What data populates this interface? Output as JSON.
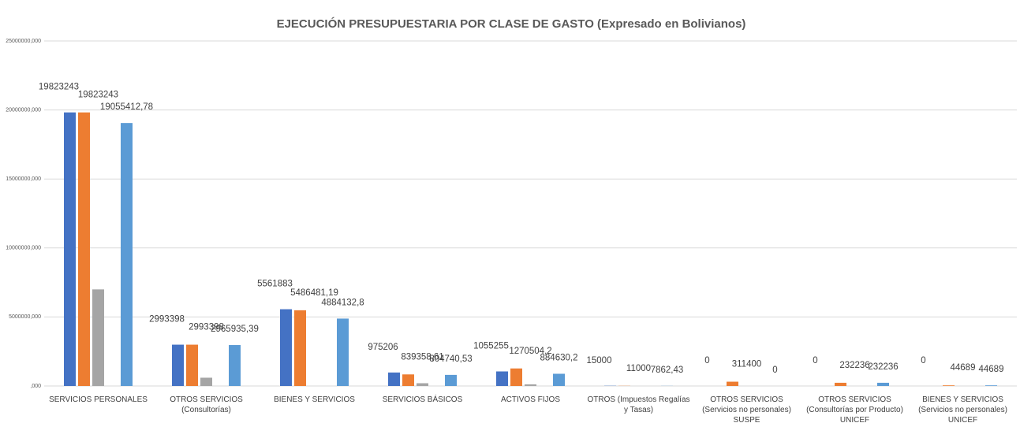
{
  "chart_data": {
    "type": "bar",
    "title": "EJECUCIÓN PRESUPUESTARIA POR CLASE DE GASTO (Expresado en Bolivianos)",
    "categories": [
      "SERVICIOS PERSONALES",
      "OTROS SERVICIOS (Consultorías)",
      "BIENES Y SERVICIOS",
      "SERVICIOS BÁSICOS",
      "ACTIVOS FIJOS",
      "OTROS (Impuestos Regalías y Tasas)",
      "OTROS SERVICIOS (Servicios no personales) SUSPE",
      "OTROS SERVICIOS (Consultorías por Producto) UNICEF",
      "BIENES Y SERVICIOS (Servicios no personales) UNICEF"
    ],
    "series": [
      {
        "color": "#4472c4",
        "values": [
          19823243,
          2993398,
          5561883,
          975206,
          1055255,
          15000,
          0,
          0,
          0
        ],
        "value_labels": [
          "19823243",
          "2993398",
          "5561883",
          "975206",
          "1055255",
          "15000",
          "0",
          "0",
          "0"
        ]
      },
      {
        "color": "#ed7d31",
        "values": [
          19823243,
          2993398,
          5486481.19,
          839358.61,
          1270504.2,
          11000,
          311400,
          232236,
          44689
        ],
        "value_labels": [
          "19823243",
          "2993398",
          "5486481,19",
          "839358,61",
          "1270504,2",
          "11000",
          "311400",
          "232236",
          "44689"
        ]
      },
      {
        "color": "#a5a5a5",
        "values": [
          7000000,
          600000,
          0,
          200000,
          120000,
          0,
          0,
          0,
          0
        ]
      },
      {
        "color": "#5b9bd5",
        "values": [
          19055412.78,
          2965935.39,
          4884132.8,
          804740.53,
          884630.2,
          7862.43,
          0,
          232236,
          44689
        ],
        "value_labels": [
          "19055412,78",
          "2965935,39",
          "4884132,8",
          "804740,53",
          "884630,2",
          "7862,43",
          "0",
          "232236",
          "44689"
        ]
      }
    ],
    "ylim": [
      0,
      25000000
    ],
    "yticks": [
      {
        "value": 0,
        "label": ",000"
      },
      {
        "value": 5000000,
        "label": "5000000,000"
      },
      {
        "value": 10000000,
        "label": "10000000,000"
      },
      {
        "value": 15000000,
        "label": "15000000,000"
      },
      {
        "value": 20000000,
        "label": "20000000,000"
      },
      {
        "value": 25000000,
        "label": "25000000,000"
      }
    ],
    "grid": true
  }
}
